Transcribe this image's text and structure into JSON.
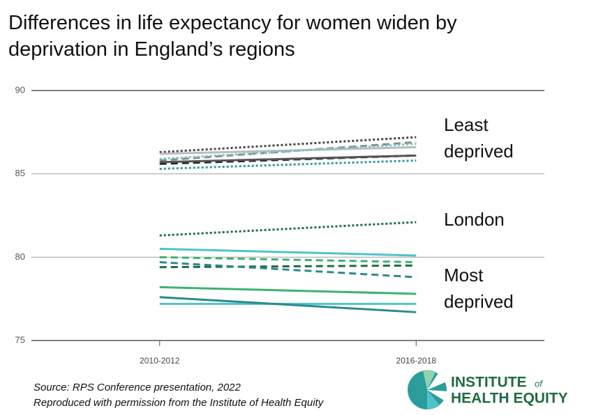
{
  "chart_data": {
    "type": "line",
    "title": "Differences in life expectancy for women widen by deprivation in England’s regions",
    "categories": [
      "2010-2012",
      "2016-2018"
    ],
    "ylim": [
      75,
      90
    ],
    "yticks": [
      75,
      80,
      85,
      90
    ],
    "grid": true,
    "series": [
      {
        "color": "#444444",
        "dash": "dotted",
        "values": [
          86.3,
          87.2
        ]
      },
      {
        "color": "#888888",
        "dash": "dashed",
        "values": [
          85.8,
          86.9
        ]
      },
      {
        "color": "#bbbbbb",
        "dash": "solid",
        "values": [
          86.2,
          86.6
        ]
      },
      {
        "color": "#6fc7c4",
        "dash": "dotted",
        "values": [
          85.9,
          86.8
        ]
      },
      {
        "color": "#222222",
        "dash": "dashed",
        "values": [
          85.6,
          86.1
        ]
      },
      {
        "color": "#555555",
        "dash": "solid",
        "values": [
          85.7,
          86.1
        ]
      },
      {
        "color": "#2a9d9a",
        "dash": "dotted",
        "values": [
          85.3,
          85.8
        ]
      },
      {
        "color": "#1f6b40",
        "dash": "dotted",
        "values": [
          81.3,
          82.1
        ]
      },
      {
        "color": "#4fc3c8",
        "dash": "solid",
        "values": [
          80.5,
          80.1
        ]
      },
      {
        "color": "#3cb371",
        "dash": "dashed",
        "values": [
          80.0,
          79.7
        ]
      },
      {
        "color": "#1f6b40",
        "dash": "dashed",
        "values": [
          79.4,
          79.5
        ]
      },
      {
        "color": "#2a8a8c",
        "dash": "dashed",
        "values": [
          79.7,
          78.8
        ]
      },
      {
        "color": "#3cb371",
        "dash": "solid",
        "values": [
          78.2,
          77.8
        ]
      },
      {
        "color": "#4fc3c8",
        "dash": "solid",
        "values": [
          77.2,
          77.2
        ]
      },
      {
        "color": "#2a8a8c",
        "dash": "solid",
        "values": [
          77.6,
          76.7
        ]
      }
    ],
    "annotations": [
      "Least deprived",
      "London",
      "Most deprived"
    ]
  },
  "source": [
    "Source: RPS Conference presentation, 2022",
    "Reproduced with permission from the Institute of Health Equity"
  ],
  "logo": {
    "line1": "INSTITUTE",
    "of": "of",
    "line2": "HEALTH EQUITY"
  }
}
